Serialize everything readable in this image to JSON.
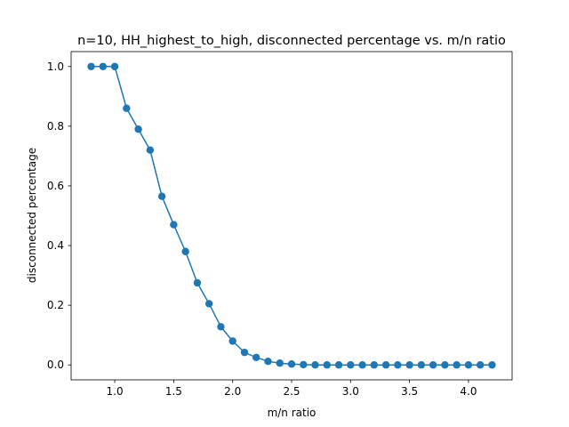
{
  "chart_data": {
    "type": "line",
    "title": "n=10, HH_highest_to_high, disconnected percentage vs. m/n ratio",
    "xlabel": "m/n ratio",
    "ylabel": "disconnected percentage",
    "xlim": [
      0.63,
      4.37
    ],
    "ylim": [
      -0.05,
      1.05
    ],
    "xticks": [
      "1.0",
      "1.5",
      "2.0",
      "2.5",
      "3.0",
      "3.5",
      "4.0"
    ],
    "xtick_values": [
      1.0,
      1.5,
      2.0,
      2.5,
      3.0,
      3.5,
      4.0
    ],
    "yticks": [
      "0.0",
      "0.2",
      "0.4",
      "0.6",
      "0.8",
      "1.0"
    ],
    "ytick_values": [
      0.0,
      0.2,
      0.4,
      0.6,
      0.8,
      1.0
    ],
    "grid": false,
    "color": "#1f77b4",
    "marker": "circle",
    "x": [
      0.8,
      0.9,
      1.0,
      1.1,
      1.2,
      1.3,
      1.4,
      1.5,
      1.6,
      1.7,
      1.8,
      1.9,
      2.0,
      2.1,
      2.2,
      2.3,
      2.4,
      2.5,
      2.6,
      2.7,
      2.8,
      2.9,
      3.0,
      3.1,
      3.2,
      3.3,
      3.4,
      3.5,
      3.6,
      3.7,
      3.8,
      3.9,
      4.0,
      4.1,
      4.2
    ],
    "y": [
      1.0,
      1.0,
      1.0,
      0.86,
      0.79,
      0.72,
      0.565,
      0.47,
      0.38,
      0.275,
      0.205,
      0.128,
      0.08,
      0.042,
      0.025,
      0.012,
      0.006,
      0.003,
      0.001,
      0.0,
      0.0,
      0.0,
      0.0,
      0.0,
      0.0,
      0.0,
      0.0,
      0.0,
      0.0,
      0.0,
      0.0,
      0.0,
      0.0,
      0.0,
      0.0
    ]
  }
}
